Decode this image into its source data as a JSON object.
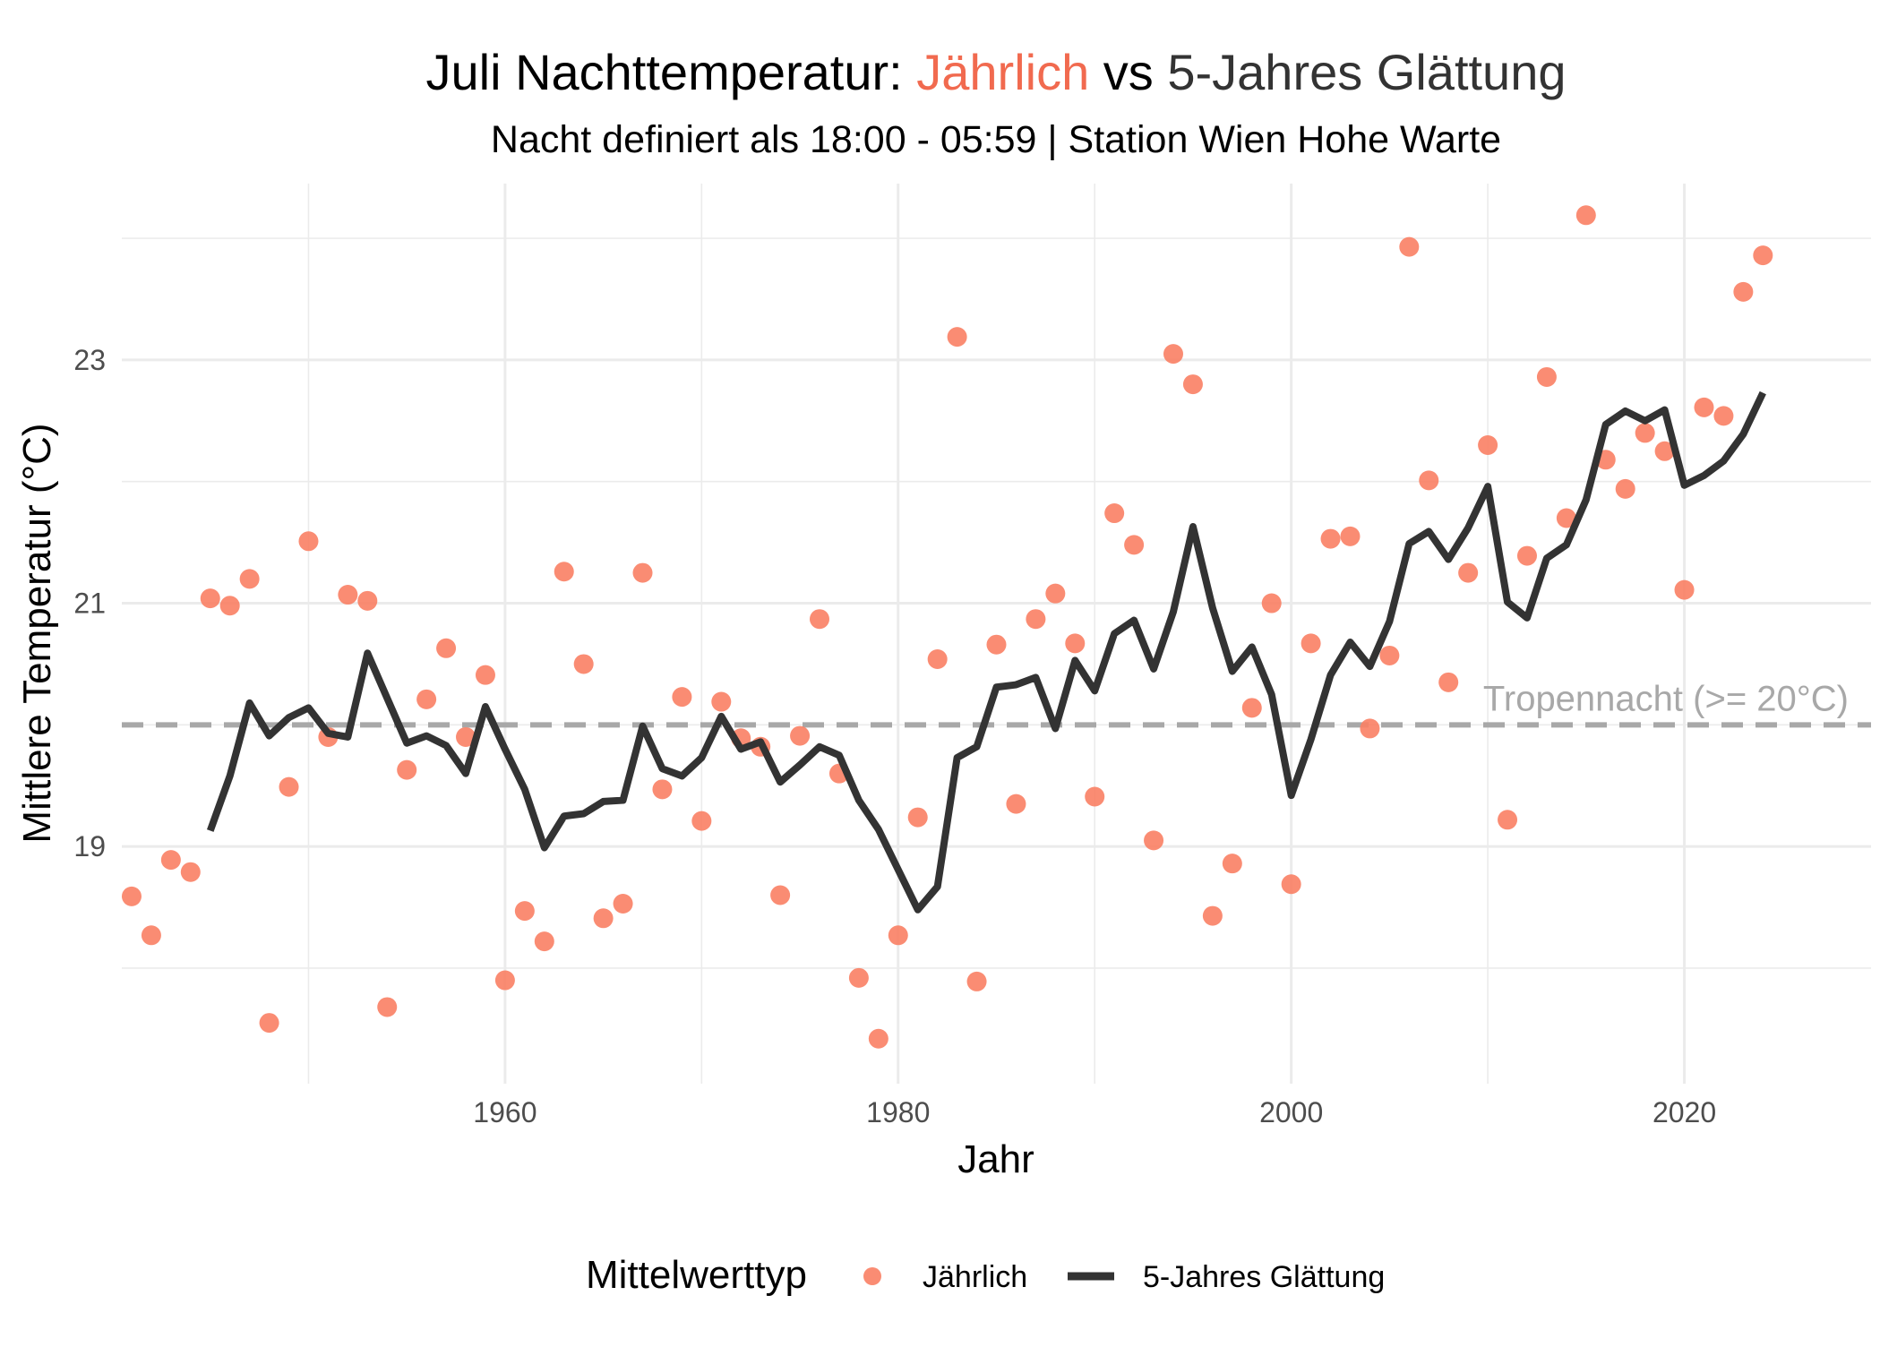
{
  "chart_data": {
    "type": "line",
    "title": {
      "prefix": "Juli Nachttemperatur: ",
      "highlight": "Jährlich",
      "middle": " vs ",
      "suffix": "5-Jahres Glättung"
    },
    "subtitle": "Nacht definiert als 18:00 - 05:59 | Station Wien Hohe Warte",
    "xlabel": "Jahr",
    "ylabel": "Mittlere Temperatur (°C)",
    "xlim": [
      1940.5,
      2029.5
    ],
    "ylim": [
      17.05,
      24.45
    ],
    "x_ticks": [
      1960,
      1980,
      2000,
      2020
    ],
    "x_tick_labels": [
      "1960",
      "1980",
      "2000",
      "2020"
    ],
    "y_ticks": [
      19,
      21,
      23
    ],
    "y_tick_labels": [
      "19",
      "21",
      "23"
    ],
    "grid": true,
    "reference_line": {
      "y": 20,
      "label": "Tropennacht (>= 20°C)",
      "style": "dashed"
    },
    "colors": {
      "annual_points": "#FA8064",
      "title_highlight": "#F16A4F",
      "smooth_line": "#333333",
      "reference_line": "#A8A8A8",
      "grid": "#EBEBEB",
      "title_suffix": "#333333"
    },
    "legend": {
      "title": "Mittelwerttyp",
      "position": "bottom",
      "items": [
        "Jährlich",
        "5-Jahres Glättung"
      ]
    },
    "series": [
      {
        "name": "Jährlich",
        "kind": "points",
        "x": [
          1941,
          1942,
          1943,
          1944,
          1945,
          1946,
          1947,
          1948,
          1949,
          1950,
          1951,
          1952,
          1953,
          1954,
          1955,
          1956,
          1957,
          1958,
          1959,
          1960,
          1961,
          1962,
          1963,
          1964,
          1965,
          1966,
          1967,
          1968,
          1969,
          1970,
          1971,
          1972,
          1973,
          1974,
          1975,
          1976,
          1977,
          1978,
          1979,
          1980,
          1981,
          1982,
          1983,
          1984,
          1985,
          1986,
          1987,
          1988,
          1989,
          1990,
          1991,
          1992,
          1993,
          1994,
          1995,
          1996,
          1997,
          1998,
          1999,
          2000,
          2001,
          2002,
          2003,
          2004,
          2005,
          2006,
          2007,
          2008,
          2009,
          2010,
          2011,
          2012,
          2013,
          2014,
          2015,
          2016,
          2017,
          2018,
          2019,
          2020,
          2021,
          2022,
          2023,
          2024
        ],
        "values": [
          18.59,
          18.27,
          18.89,
          18.79,
          21.04,
          20.98,
          21.2,
          17.55,
          19.49,
          21.51,
          19.9,
          21.07,
          21.02,
          17.68,
          19.63,
          20.21,
          20.63,
          19.9,
          20.41,
          17.9,
          18.47,
          18.22,
          21.26,
          20.5,
          18.41,
          18.53,
          21.25,
          19.47,
          20.23,
          19.21,
          20.19,
          19.89,
          19.82,
          18.6,
          19.91,
          20.87,
          19.6,
          17.92,
          17.42,
          18.27,
          19.24,
          20.54,
          23.19,
          17.89,
          20.66,
          19.35,
          20.87,
          21.08,
          20.67,
          19.41,
          21.74,
          21.48,
          19.05,
          23.05,
          22.8,
          18.43,
          18.86,
          20.14,
          21.0,
          18.69,
          20.67,
          21.53,
          21.55,
          19.97,
          20.57,
          23.93,
          22.01,
          20.35,
          21.25,
          22.3,
          19.22,
          21.39,
          22.86,
          21.7,
          24.19,
          22.18,
          21.94,
          22.4,
          22.25,
          21.11,
          22.61,
          22.54,
          23.56,
          23.86
        ]
      },
      {
        "name": "5-Jahres Glättung",
        "kind": "line",
        "x": [
          1945,
          1946,
          1947,
          1948,
          1949,
          1950,
          1951,
          1952,
          1953,
          1954,
          1955,
          1956,
          1957,
          1958,
          1959,
          1960,
          1961,
          1962,
          1963,
          1964,
          1965,
          1966,
          1967,
          1968,
          1969,
          1970,
          1971,
          1972,
          1973,
          1974,
          1975,
          1976,
          1977,
          1978,
          1979,
          1980,
          1981,
          1982,
          1983,
          1984,
          1985,
          1986,
          1987,
          1988,
          1989,
          1990,
          1991,
          1992,
          1993,
          1994,
          1995,
          1996,
          1997,
          1998,
          1999,
          2000,
          2001,
          2002,
          2003,
          2004,
          2005,
          2006,
          2007,
          2008,
          2009,
          2010,
          2011,
          2012,
          2013,
          2014,
          2015,
          2016,
          2017,
          2018,
          2019,
          2020,
          2021,
          2022,
          2023,
          2024
        ],
        "values": [
          19.13,
          19.58,
          20.18,
          19.91,
          20.06,
          20.14,
          19.93,
          19.9,
          20.59,
          20.22,
          19.85,
          19.91,
          19.83,
          19.6,
          20.15,
          19.8,
          19.47,
          18.99,
          19.25,
          19.27,
          19.37,
          19.38,
          19.99,
          19.64,
          19.58,
          19.73,
          20.07,
          19.8,
          19.86,
          19.53,
          19.67,
          19.82,
          19.75,
          19.38,
          19.14,
          18.81,
          18.48,
          18.67,
          19.73,
          19.82,
          20.31,
          20.33,
          20.39,
          19.97,
          20.53,
          20.28,
          20.75,
          20.86,
          20.46,
          20.93,
          21.63,
          20.96,
          20.44,
          20.64,
          20.25,
          19.42,
          19.88,
          20.41,
          20.68,
          20.48,
          20.85,
          21.49,
          21.59,
          21.36,
          21.62,
          21.96,
          21.01,
          20.88,
          21.37,
          21.48,
          21.85,
          22.47,
          22.58,
          22.5,
          22.59,
          21.97,
          22.05,
          22.17,
          22.39,
          22.73
        ]
      }
    ]
  }
}
